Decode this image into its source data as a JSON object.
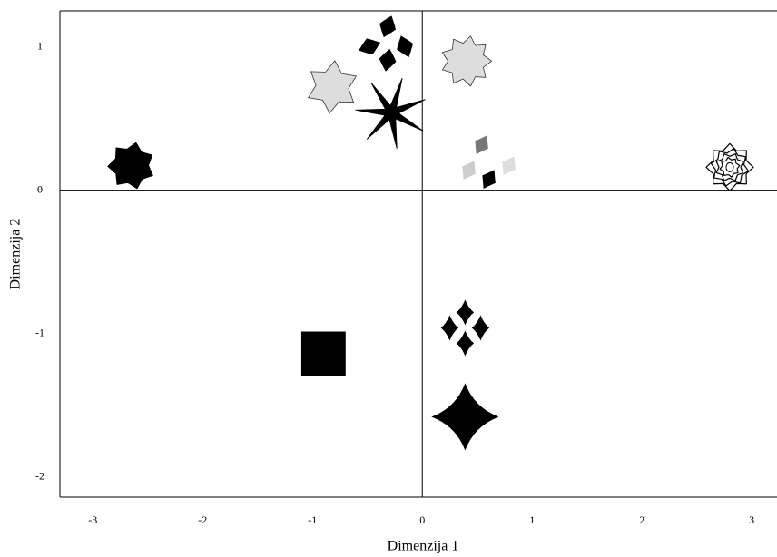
{
  "chart_data": {
    "type": "scatter",
    "xlabel": "Dimenzija 1",
    "ylabel": "Dimenzija 2",
    "x": [
      -2.65,
      -0.82,
      -0.34,
      -0.28,
      0.4,
      0.59,
      2.8,
      -0.9,
      0.39,
      0.39
    ],
    "values": [
      0.17,
      0.72,
      0.97,
      0.54,
      0.9,
      0.19,
      0.16,
      -1.14,
      -0.96,
      -1.58
    ],
    "colors": [
      "#000000",
      "#dddddd",
      "#000000",
      "#000000",
      "#dddddd",
      "#999999",
      "#ffffff",
      "#000000",
      "#000000",
      "#000000"
    ],
    "xlim": [
      -3.3,
      3.23
    ],
    "ylim": [
      -2.14,
      1.25
    ],
    "xticks": [
      -3,
      -2,
      -1,
      0,
      1,
      2,
      3
    ],
    "yticks": [
      -2,
      -1,
      0,
      1
    ]
  }
}
